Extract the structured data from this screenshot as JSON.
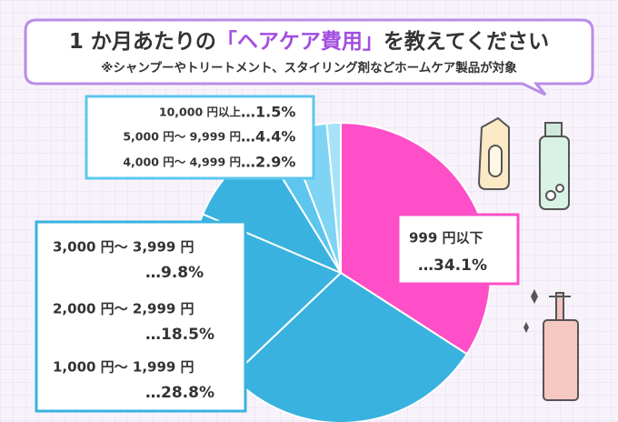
{
  "chart_data": {
    "type": "pie",
    "title": [
      "1 か月あたりの",
      "「ヘアケア費用」",
      "を教えてください"
    ],
    "subtitle": "※シャンプーやトリートメント、スタイリング剤などホームケア製品が対象",
    "categories": [
      "999 円以下",
      "1,000 円～ 1,999 円",
      "2,000 円～ 2,999 円",
      "3,000 円～ 3,999 円",
      "4,000 円～ 4,999 円",
      "5,000 円～ 9,999 円",
      "10,000 円以上"
    ],
    "values": [
      34.1,
      28.8,
      18.5,
      9.8,
      2.9,
      4.4,
      1.5
    ],
    "value_labels": [
      "…34.1%",
      "…28.8%",
      "…18.5%",
      "…9.8%",
      "…2.9%",
      "…4.4%",
      "…1.5%"
    ],
    "colors": [
      "#ff4fc8",
      "#3ab2df",
      "#3ab2df",
      "#3ab2df",
      "#5ec6ee",
      "#7fd4f4",
      "#a6e3f8"
    ]
  }
}
